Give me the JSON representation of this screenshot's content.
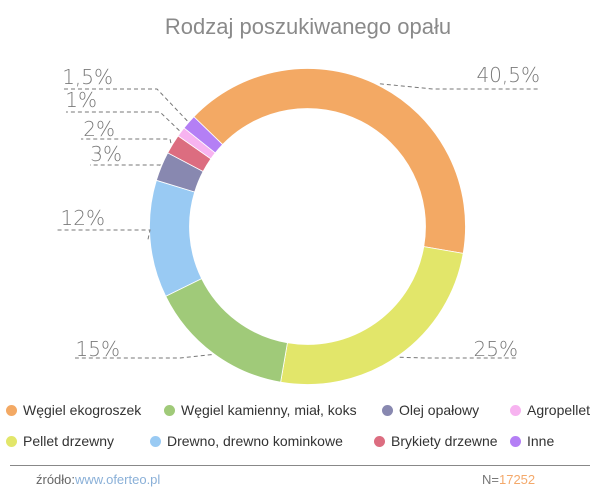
{
  "title": "Rodzaj poszukiwanego opału",
  "chart_data": {
    "type": "pie",
    "subtype": "donut",
    "title": "Rodzaj poszukiwanego opału",
    "categories": [
      "Węgiel ekogroszek",
      "Pellet drzewny",
      "Węgiel kamienny, miał, koks",
      "Drewno, drewno kominkowe",
      "Olej opałowy",
      "Brykiety drzewne",
      "Agropellet",
      "Inne"
    ],
    "values": [
      40.5,
      25,
      15,
      12,
      3,
      2,
      1,
      1.5
    ],
    "labels": [
      "40,5%",
      "25%",
      "15%",
      "12%",
      "3%",
      "2%",
      "1%",
      "1,5%"
    ],
    "colors": [
      "#f3a964",
      "#e2e66a",
      "#a0ca79",
      "#99caf3",
      "#8888b0",
      "#dc6d80",
      "#f7b3f0",
      "#b47ff5"
    ],
    "legend_position": "bottom"
  },
  "legend": [
    {
      "label": "Węgiel ekogroszek",
      "color": "#f3a964"
    },
    {
      "label": "Węgiel kamienny, miał, koks",
      "color": "#a0ca79"
    },
    {
      "label": "Olej opałowy",
      "color": "#8888b0"
    },
    {
      "label": "Agropellet",
      "color": "#f7b3f0"
    },
    {
      "label": "Pellet drzewny",
      "color": "#e2e66a"
    },
    {
      "label": "Drewno, drewno kominkowe",
      "color": "#99caf3"
    },
    {
      "label": "Brykiety drzewne",
      "color": "#dc6d80"
    },
    {
      "label": "Inne",
      "color": "#b47ff5"
    }
  ],
  "footer": {
    "source_label": "źródło:",
    "source_link": "www.oferteo.pl",
    "n_label": "N=",
    "n_value": "17252"
  }
}
